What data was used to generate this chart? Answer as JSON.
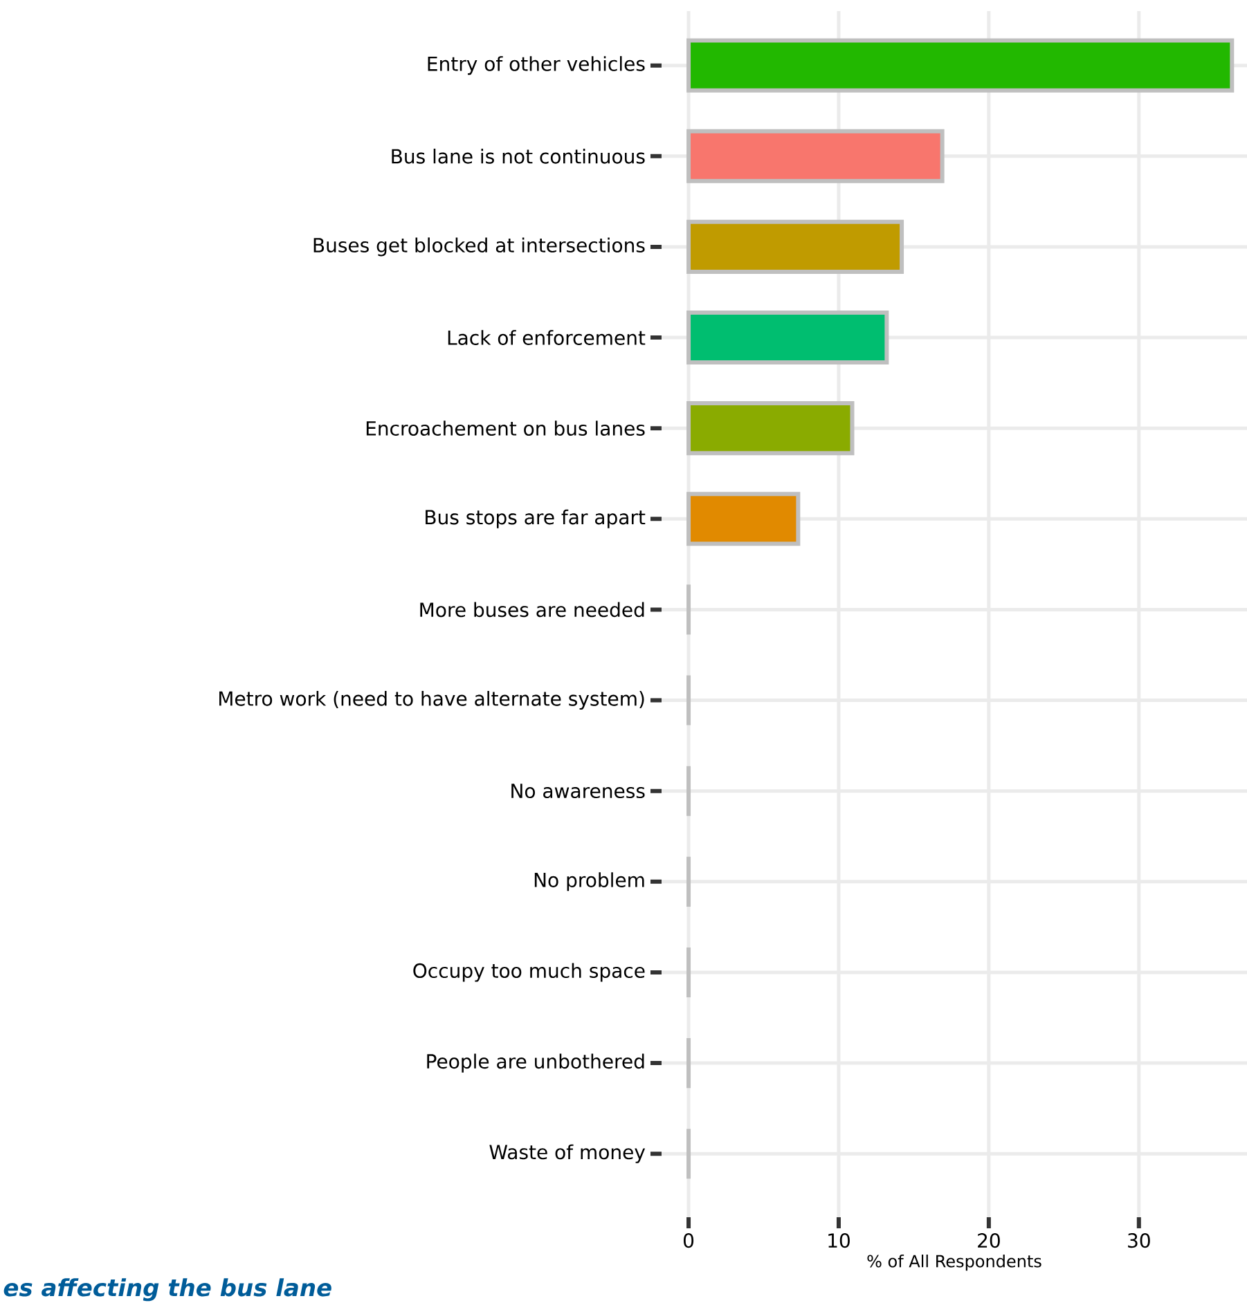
{
  "chart_data": {
    "type": "bar",
    "orientation": "horizontal",
    "xlabel": "% of All Respondents",
    "categories": [
      "Entry of other vehicles",
      "Bus lane is not continuous",
      "Buses get blocked at intersections",
      "Lack of enforcement",
      "Encroachement on bus lanes",
      "Bus stops are far apart",
      "More buses are needed",
      "Metro work (need to have alternate system)",
      "No awareness",
      "No problem",
      "Occupy too much space",
      "People are unbothered",
      "Waste of money"
    ],
    "values": [
      36.2,
      16.9,
      14.2,
      13.2,
      10.9,
      7.3,
      0,
      0,
      0,
      0,
      0,
      0,
      0
    ],
    "colors": [
      "#22b800",
      "#f8766d",
      "#c09b00",
      "#00be70",
      "#8aab00",
      "#e18a00",
      "#bebebe",
      "#bebebe",
      "#bebebe",
      "#bebebe",
      "#bebebe",
      "#bebebe",
      "#bebebe"
    ],
    "xlim": [
      -1.8,
      37.2
    ],
    "xticks": [
      0,
      10,
      20,
      30
    ],
    "grid": true,
    "annotations": [
      "es affecting the bus lane"
    ]
  }
}
